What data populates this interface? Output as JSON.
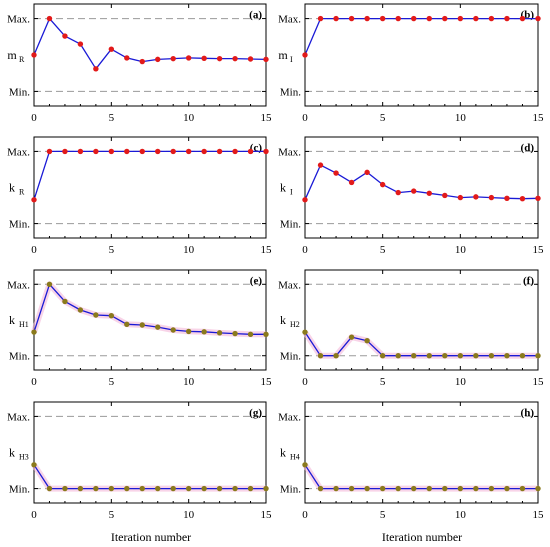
{
  "colors": {
    "line": "#1a1ad6",
    "marker_red": "#e21a1a",
    "marker_olive": "#8a7a1c",
    "pink_glow": "#f4b8d8",
    "limit_line": "#9a9a9a",
    "frame": "#000000"
  },
  "xlabel": "Iteration number",
  "chart_data": [
    {
      "id": "a",
      "type": "line",
      "tag": "(a)",
      "ylabel": "m",
      "ylabel_sub": "R",
      "xlim": [
        0,
        15
      ],
      "ylim": [
        -0.2,
        1.2
      ],
      "yticks": [
        {
          "value": 0,
          "label": "Min."
        },
        {
          "value": 1,
          "label": "Max."
        }
      ],
      "xticks": [
        0,
        5,
        10,
        15
      ],
      "grid": "limit lines at Min. and Max.",
      "marker": "red",
      "x": [
        0,
        1,
        2,
        3,
        4,
        5,
        6,
        7,
        8,
        9,
        10,
        11,
        12,
        13,
        14,
        15
      ],
      "y": [
        0.5,
        1.0,
        0.76,
        0.65,
        0.31,
        0.58,
        0.46,
        0.41,
        0.44,
        0.45,
        0.46,
        0.455,
        0.45,
        0.45,
        0.445,
        0.44
      ]
    },
    {
      "id": "b",
      "type": "line",
      "tag": "(b)",
      "ylabel": "m",
      "ylabel_sub": "I",
      "xlim": [
        0,
        15
      ],
      "ylim": [
        -0.2,
        1.2
      ],
      "yticks": [
        {
          "value": 0,
          "label": "Min."
        },
        {
          "value": 1,
          "label": "Max."
        }
      ],
      "xticks": [
        0,
        5,
        10,
        15
      ],
      "grid": "limit lines at Min. and Max.",
      "marker": "red",
      "x": [
        0,
        1,
        2,
        3,
        4,
        5,
        6,
        7,
        8,
        9,
        10,
        11,
        12,
        13,
        14,
        15
      ],
      "y": [
        0.5,
        1,
        1,
        1,
        1,
        1,
        1,
        1,
        1,
        1,
        1,
        1,
        1,
        1,
        1,
        1
      ]
    },
    {
      "id": "c",
      "type": "line",
      "tag": "(c)",
      "ylabel": "k",
      "ylabel_sub": "R",
      "xlim": [
        0,
        15
      ],
      "ylim": [
        -0.2,
        1.2
      ],
      "yticks": [
        {
          "value": 0,
          "label": "Min."
        },
        {
          "value": 1,
          "label": "Max."
        }
      ],
      "xticks": [
        0,
        5,
        10,
        15
      ],
      "grid": "limit lines at Min. and Max.",
      "marker": "red",
      "x": [
        0,
        1,
        2,
        3,
        4,
        5,
        6,
        7,
        8,
        9,
        10,
        11,
        12,
        13,
        14,
        15
      ],
      "y": [
        0.33,
        1,
        1,
        1,
        1,
        1,
        1,
        1,
        1,
        1,
        1,
        1,
        1,
        1,
        1,
        1
      ]
    },
    {
      "id": "d",
      "type": "line",
      "tag": "(d)",
      "ylabel": "k",
      "ylabel_sub": "I",
      "xlim": [
        0,
        15
      ],
      "ylim": [
        -0.2,
        1.2
      ],
      "yticks": [
        {
          "value": 0,
          "label": "Min."
        },
        {
          "value": 1,
          "label": "Max."
        }
      ],
      "xticks": [
        0,
        5,
        10,
        15
      ],
      "grid": "limit lines at Min. and Max.",
      "marker": "red",
      "x": [
        0,
        1,
        2,
        3,
        4,
        5,
        6,
        7,
        8,
        9,
        10,
        11,
        12,
        13,
        14,
        15
      ],
      "y": [
        0.33,
        0.81,
        0.7,
        0.57,
        0.71,
        0.54,
        0.43,
        0.45,
        0.42,
        0.39,
        0.36,
        0.37,
        0.36,
        0.35,
        0.345,
        0.35
      ]
    },
    {
      "id": "e",
      "type": "line",
      "tag": "(e)",
      "ylabel": "k",
      "ylabel_sub": "H1",
      "xlim": [
        0,
        15
      ],
      "ylim": [
        -0.2,
        1.2
      ],
      "yticks": [
        {
          "value": 0,
          "label": "Min."
        },
        {
          "value": 1,
          "label": "Max."
        }
      ],
      "xticks": [
        0,
        5,
        10,
        15
      ],
      "grid": "limit lines at Min. and Max.",
      "marker": "olive",
      "x": [
        0,
        1,
        2,
        3,
        4,
        5,
        6,
        7,
        8,
        9,
        10,
        11,
        12,
        13,
        14,
        15
      ],
      "y": [
        0.33,
        1.0,
        0.76,
        0.64,
        0.57,
        0.56,
        0.44,
        0.43,
        0.4,
        0.36,
        0.34,
        0.335,
        0.32,
        0.31,
        0.3,
        0.3
      ]
    },
    {
      "id": "f",
      "type": "line",
      "tag": "(f)",
      "ylabel": "k",
      "ylabel_sub": "H2",
      "xlim": [
        0,
        15
      ],
      "ylim": [
        -0.2,
        1.2
      ],
      "yticks": [
        {
          "value": 0,
          "label": "Min."
        },
        {
          "value": 1,
          "label": "Max."
        }
      ],
      "xticks": [
        0,
        5,
        10,
        15
      ],
      "grid": "limit lines at Min. and Max.",
      "marker": "olive",
      "x": [
        0,
        1,
        2,
        3,
        4,
        5,
        6,
        7,
        8,
        9,
        10,
        11,
        12,
        13,
        14,
        15
      ],
      "y": [
        0.33,
        0,
        0,
        0.26,
        0.21,
        0,
        0,
        0,
        0,
        0,
        0,
        0,
        0,
        0,
        0,
        0
      ]
    },
    {
      "id": "g",
      "type": "line",
      "tag": "(g)",
      "ylabel": "k",
      "ylabel_sub": "H3",
      "xlim": [
        0,
        15
      ],
      "ylim": [
        -0.2,
        1.2
      ],
      "yticks": [
        {
          "value": 0,
          "label": "Min."
        },
        {
          "value": 1,
          "label": "Max."
        }
      ],
      "xticks": [
        0,
        5,
        10,
        15
      ],
      "grid": "limit lines at Min. and Max.",
      "marker": "olive",
      "x": [
        0,
        1,
        2,
        3,
        4,
        5,
        6,
        7,
        8,
        9,
        10,
        11,
        12,
        13,
        14,
        15
      ],
      "y": [
        0.33,
        0,
        0,
        0,
        0,
        0,
        0,
        0,
        0,
        0,
        0,
        0,
        0,
        0,
        0,
        0
      ]
    },
    {
      "id": "h",
      "type": "line",
      "tag": "(h)",
      "ylabel": "k",
      "ylabel_sub": "H4",
      "xlim": [
        0,
        15
      ],
      "ylim": [
        -0.2,
        1.2
      ],
      "yticks": [
        {
          "value": 0,
          "label": "Min."
        },
        {
          "value": 1,
          "label": "Max."
        }
      ],
      "xticks": [
        0,
        5,
        10,
        15
      ],
      "grid": "limit lines at Min. and Max.",
      "marker": "olive",
      "x": [
        0,
        1,
        2,
        3,
        4,
        5,
        6,
        7,
        8,
        9,
        10,
        11,
        12,
        13,
        14,
        15
      ],
      "y": [
        0.33,
        0,
        0,
        0,
        0,
        0,
        0,
        0,
        0,
        0,
        0,
        0,
        0,
        0,
        0,
        0
      ]
    }
  ]
}
